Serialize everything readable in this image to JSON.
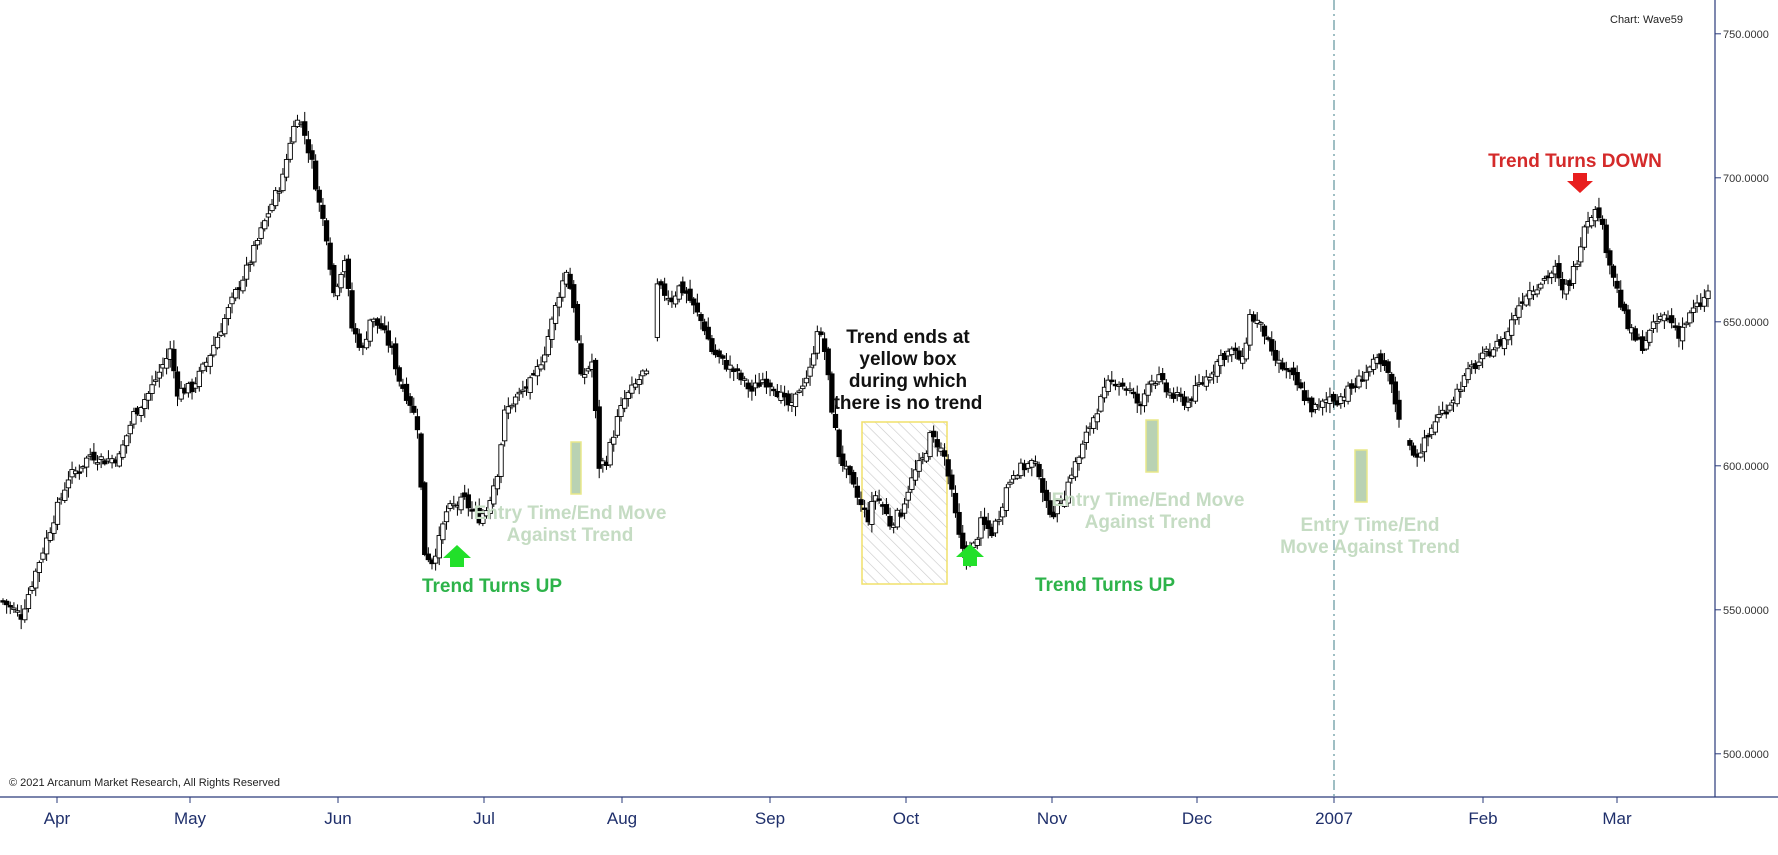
{
  "chart_data": {
    "type": "candlestick",
    "source_label": "Chart: Wave59",
    "copyright": "© 2021 Arcanum Market Research, All Rights Reserved",
    "ylim": [
      485,
      760
    ],
    "y_ticks": [
      {
        "value": 750,
        "label": "750.0000"
      },
      {
        "value": 700,
        "label": "700.0000"
      },
      {
        "value": 650,
        "label": "650.0000"
      },
      {
        "value": 600,
        "label": "600.0000"
      },
      {
        "value": 550,
        "label": "550.0000"
      },
      {
        "value": 500,
        "label": "500.0000"
      }
    ],
    "x_axis_labels": [
      "Apr",
      "May",
      "Jun",
      "Jul",
      "Aug",
      "Sep",
      "Oct",
      "Nov",
      "Dec",
      "2007",
      "Feb",
      "Mar"
    ],
    "close_path": [
      [
        0,
        553
      ],
      [
        5,
        548
      ],
      [
        10,
        567
      ],
      [
        14,
        582
      ],
      [
        18,
        596
      ],
      [
        21,
        599
      ],
      [
        24,
        604
      ],
      [
        28,
        602
      ],
      [
        32,
        603
      ],
      [
        36,
        618
      ],
      [
        40,
        625
      ],
      [
        44,
        635
      ],
      [
        46,
        640
      ],
      [
        48,
        626
      ],
      [
        52,
        627
      ],
      [
        56,
        636
      ],
      [
        60,
        648
      ],
      [
        64,
        660
      ],
      [
        67,
        668
      ],
      [
        70,
        678
      ],
      [
        73,
        688
      ],
      [
        77,
        700
      ],
      [
        79,
        713
      ],
      [
        81,
        722
      ],
      [
        83,
        715
      ],
      [
        85,
        705
      ],
      [
        87,
        691
      ],
      [
        89,
        680
      ],
      [
        91,
        660
      ],
      [
        94,
        672
      ],
      [
        96,
        648
      ],
      [
        99,
        640
      ],
      [
        101,
        651
      ],
      [
        104,
        648
      ],
      [
        107,
        640
      ],
      [
        109,
        630
      ],
      [
        112,
        622
      ],
      [
        114,
        614
      ],
      [
        116,
        570
      ],
      [
        118,
        567
      ],
      [
        120,
        574
      ],
      [
        122,
        584
      ],
      [
        124,
        586
      ],
      [
        127,
        588
      ],
      [
        129,
        584
      ],
      [
        131,
        582
      ],
      [
        133,
        585
      ],
      [
        136,
        598
      ],
      [
        138,
        618
      ],
      [
        140,
        622
      ],
      [
        143,
        626
      ],
      [
        146,
        630
      ],
      [
        149,
        640
      ],
      [
        151,
        650
      ],
      [
        153,
        660
      ],
      [
        155,
        668
      ],
      [
        157,
        656
      ],
      [
        159,
        630
      ],
      [
        162,
        636
      ],
      [
        164,
        600
      ],
      [
        166,
        602
      ],
      [
        169,
        616
      ],
      [
        171,
        623
      ],
      [
        174,
        628
      ],
      [
        176,
        632
      ],
      [
        178,
        630
      ],
      [
        180,
        662
      ],
      [
        182,
        660
      ],
      [
        184,
        658
      ],
      [
        186,
        662
      ],
      [
        188,
        660
      ],
      [
        190,
        655
      ],
      [
        193,
        648
      ],
      [
        195,
        640
      ],
      [
        198,
        636
      ],
      [
        201,
        633
      ],
      [
        203,
        630
      ],
      [
        206,
        626
      ],
      [
        209,
        630
      ],
      [
        212,
        628
      ],
      [
        215,
        622
      ],
      [
        217,
        620
      ],
      [
        219,
        627
      ],
      [
        222,
        633
      ],
      [
        224,
        648
      ],
      [
        226,
        640
      ],
      [
        228,
        620
      ],
      [
        230,
        604
      ],
      [
        232,
        598
      ],
      [
        234,
        592
      ],
      [
        236,
        586
      ],
      [
        238,
        582
      ],
      [
        240,
        590
      ],
      [
        242,
        586
      ],
      [
        244,
        580
      ],
      [
        247,
        584
      ],
      [
        249,
        592
      ],
      [
        251,
        598
      ],
      [
        253,
        602
      ],
      [
        255,
        610
      ],
      [
        257,
        608
      ],
      [
        259,
        603
      ],
      [
        261,
        590
      ],
      [
        263,
        575
      ],
      [
        265,
        568
      ],
      [
        267,
        572
      ],
      [
        269,
        580
      ],
      [
        272,
        577
      ],
      [
        274,
        583
      ],
      [
        276,
        592
      ],
      [
        278,
        598
      ],
      [
        280,
        599
      ],
      [
        283,
        601
      ],
      [
        285,
        598
      ],
      [
        287,
        586
      ],
      [
        289,
        584
      ],
      [
        292,
        590
      ],
      [
        294,
        598
      ],
      [
        296,
        603
      ],
      [
        299,
        614
      ],
      [
        301,
        620
      ],
      [
        304,
        628
      ],
      [
        306,
        630
      ],
      [
        308,
        628
      ],
      [
        310,
        626
      ],
      [
        313,
        620
      ],
      [
        315,
        630
      ],
      [
        318,
        630
      ],
      [
        320,
        626
      ],
      [
        322,
        624
      ],
      [
        324,
        623
      ],
      [
        326,
        622
      ],
      [
        329,
        628
      ],
      [
        332,
        632
      ],
      [
        335,
        638
      ],
      [
        338,
        640
      ],
      [
        341,
        636
      ],
      [
        343,
        652
      ],
      [
        345,
        650
      ],
      [
        347,
        646
      ],
      [
        349,
        638
      ],
      [
        352,
        634
      ],
      [
        355,
        630
      ],
      [
        357,
        626
      ],
      [
        360,
        620
      ],
      [
        362,
        620
      ],
      [
        365,
        624
      ],
      [
        367,
        623
      ],
      [
        370,
        626
      ],
      [
        372,
        628
      ],
      [
        375,
        633
      ],
      [
        378,
        636
      ],
      [
        381,
        632
      ],
      [
        383,
        622
      ],
      [
        385,
        613
      ],
      [
        387,
        606
      ],
      [
        389,
        604
      ],
      [
        392,
        610
      ],
      [
        394,
        616
      ],
      [
        397,
        620
      ],
      [
        400,
        626
      ],
      [
        402,
        630
      ],
      [
        404,
        634
      ],
      [
        406,
        636
      ],
      [
        409,
        640
      ],
      [
        411,
        642
      ],
      [
        413,
        644
      ],
      [
        415,
        650
      ],
      [
        417,
        656
      ],
      [
        419,
        660
      ],
      [
        421,
        662
      ],
      [
        423,
        664
      ],
      [
        425,
        666
      ],
      [
        427,
        668
      ],
      [
        429,
        660
      ],
      [
        431,
        664
      ],
      [
        433,
        672
      ],
      [
        435,
        684
      ],
      [
        437,
        688
      ],
      [
        439,
        688
      ],
      [
        441,
        676
      ],
      [
        443,
        666
      ],
      [
        445,
        656
      ],
      [
        447,
        648
      ],
      [
        449,
        644
      ],
      [
        451,
        642
      ],
      [
        453,
        646
      ],
      [
        455,
        650
      ],
      [
        457,
        652
      ],
      [
        459,
        650
      ],
      [
        461,
        646
      ],
      [
        463,
        650
      ],
      [
        465,
        654
      ],
      [
        467,
        656
      ],
      [
        469,
        660
      ]
    ],
    "annotations": [
      {
        "text": "Trend Turns UP",
        "style": "green-bold",
        "arrow": "up"
      },
      {
        "text": "Entry Time/End Move Against Trend",
        "lines": [
          "Entry Time/End Move",
          "Against Trend"
        ],
        "style": "pale-green-bold"
      },
      {
        "text": "Trend ends at yellow box during which there is no trend",
        "lines": [
          "Trend ends at",
          "yellow box",
          "during which",
          "there is no trend"
        ],
        "style": "black-bold"
      },
      {
        "text": "Trend Turns UP",
        "style": "green-bold",
        "arrow": "up"
      },
      {
        "text": "Entry Time/End Move Against Trend",
        "lines": [
          "Entry Time/End Move",
          "Against Trend"
        ],
        "style": "pale-green-bold"
      },
      {
        "text": "Entry Time/End Move Against Trend",
        "lines": [
          "Entry Time/End",
          "Move Against Trend"
        ],
        "style": "pale-green-bold"
      },
      {
        "text": "Trend Turns DOWN",
        "style": "red-bold",
        "arrow": "down"
      }
    ],
    "grid": false,
    "colors": {
      "up_candle": "#ffffff",
      "down_candle": "#000000",
      "axis": "#2a3a7a",
      "trend_up": "#2db34a",
      "trend_down": "#d42a2a",
      "entry_text": "#c5dcc3",
      "entry_box_fill": "#b9d2b3",
      "entry_box_border": "#e8e88a",
      "no_trend_box_border": "#f1e06a"
    }
  }
}
